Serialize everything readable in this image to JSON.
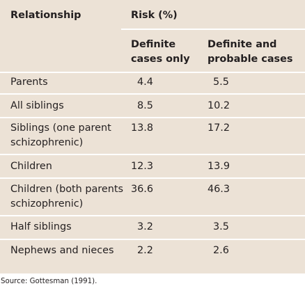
{
  "table": {
    "header": {
      "relationship": "Relationship",
      "risk": "Risk (%)",
      "definite": "Definite cases only",
      "probable": "Definite and probable cases"
    },
    "rows": [
      {
        "relationship": "Parents",
        "definite": "4.4",
        "probable": "5.5"
      },
      {
        "relationship": "All siblings",
        "definite": "8.5",
        "probable": "10.2"
      },
      {
        "relationship": "Siblings (one parent schizophrenic)",
        "definite": "13.8",
        "probable": "17.2"
      },
      {
        "relationship": "Children",
        "definite": "12.3",
        "probable": "13.9"
      },
      {
        "relationship": "Children (both parents schizophrenic)",
        "definite": "36.6",
        "probable": "46.3"
      },
      {
        "relationship": "Half siblings",
        "definite": "3.2",
        "probable": "3.5"
      },
      {
        "relationship": "Nephews and nieces",
        "definite": "2.2",
        "probable": "2.6"
      }
    ]
  },
  "source": "Source: Gottesman (1991).",
  "colors": {
    "table_background": "#ece2d6",
    "rule": "#ffffff",
    "text": "#231f20"
  }
}
